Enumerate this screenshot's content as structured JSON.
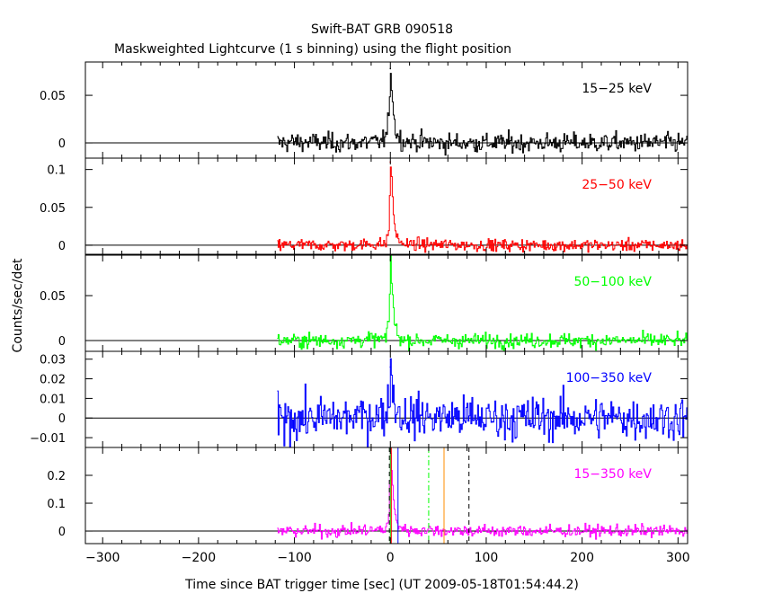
{
  "chart_data": {
    "type": "line",
    "title": "Swift-BAT GRB 090518",
    "subtitle": "Maskweighted Lightcurve (1 s binning) using the flight position",
    "xlabel": "Time since BAT trigger time [sec] (UT 2009-05-18T01:54:44.2)",
    "ylabel": "Counts/sec/det",
    "xlim": [
      -318,
      310
    ],
    "x_ticks": [
      -300,
      -200,
      -100,
      0,
      100,
      200,
      300
    ],
    "data_range": [
      -118,
      310
    ],
    "grid": false,
    "panels": [
      {
        "name": "15-25 keV",
        "label": "15−25 keV",
        "color": "#000000",
        "ylim": [
          -0.016,
          0.085
        ],
        "y_ticks": [
          0,
          0.05
        ],
        "y_tick_labels": [
          "0",
          "0.05"
        ],
        "noise_sd": 0.005,
        "peak": {
          "x": 0,
          "y": 0.078
        },
        "series": [
          {
            "x": -118,
            "y": 0.0
          },
          {
            "x": -100,
            "y": 0.001
          },
          {
            "x": -50,
            "y": 0.0
          },
          {
            "x": -10,
            "y": 0.001
          },
          {
            "x": -4,
            "y": 0.008
          },
          {
            "x": -2,
            "y": 0.03
          },
          {
            "x": 0,
            "y": 0.078
          },
          {
            "x": 2,
            "y": 0.045
          },
          {
            "x": 4,
            "y": 0.02
          },
          {
            "x": 7,
            "y": 0.008
          },
          {
            "x": 12,
            "y": 0.002
          },
          {
            "x": 50,
            "y": 0.0
          },
          {
            "x": 150,
            "y": 0.0
          },
          {
            "x": 250,
            "y": 0.0
          },
          {
            "x": 310,
            "y": 0.0
          }
        ]
      },
      {
        "name": "25-50 keV",
        "label": "25−50 keV",
        "color": "#ff0000",
        "ylim": [
          -0.012,
          0.115
        ],
        "y_ticks": [
          0,
          0.05,
          0.1
        ],
        "y_tick_labels": [
          "0",
          "0.05",
          "0.1"
        ],
        "noise_sd": 0.004,
        "peak": {
          "x": 0,
          "y": 0.11
        },
        "series": [
          {
            "x": -118,
            "y": 0.0
          },
          {
            "x": -50,
            "y": 0.0
          },
          {
            "x": -5,
            "y": 0.002
          },
          {
            "x": -2,
            "y": 0.02
          },
          {
            "x": 0,
            "y": 0.11
          },
          {
            "x": 2,
            "y": 0.06
          },
          {
            "x": 4,
            "y": 0.025
          },
          {
            "x": 8,
            "y": 0.006
          },
          {
            "x": 15,
            "y": 0.001
          },
          {
            "x": 100,
            "y": 0.0
          },
          {
            "x": 310,
            "y": 0.0
          }
        ]
      },
      {
        "name": "50-100 keV",
        "label": "50−100 keV",
        "color": "#00ff00",
        "ylim": [
          -0.012,
          0.095
        ],
        "y_ticks": [
          0,
          0.05
        ],
        "y_tick_labels": [
          "0",
          "0.05"
        ],
        "noise_sd": 0.004,
        "peak": {
          "x": 0,
          "y": 0.09
        },
        "series": [
          {
            "x": -118,
            "y": 0.0
          },
          {
            "x": -50,
            "y": 0.0
          },
          {
            "x": -5,
            "y": 0.002
          },
          {
            "x": -2,
            "y": 0.02
          },
          {
            "x": 0,
            "y": 0.09
          },
          {
            "x": 2,
            "y": 0.05
          },
          {
            "x": 4,
            "y": 0.02
          },
          {
            "x": 8,
            "y": 0.004
          },
          {
            "x": 15,
            "y": 0.0
          },
          {
            "x": 100,
            "y": 0.0
          },
          {
            "x": 310,
            "y": 0.0
          }
        ]
      },
      {
        "name": "100-350 keV",
        "label": "100−350 keV",
        "color": "#0000ff",
        "ylim": [
          -0.015,
          0.034
        ],
        "y_ticks": [
          -0.01,
          0,
          0.01,
          0.02,
          0.03
        ],
        "y_tick_labels": [
          "−0.01",
          "0",
          "0.01",
          "0.02",
          "0.03"
        ],
        "noise_sd": 0.0055,
        "peak": {
          "x": 0,
          "y": 0.026
        },
        "series": [
          {
            "x": -118,
            "y": 0.0
          },
          {
            "x": -50,
            "y": 0.0
          },
          {
            "x": -5,
            "y": 0.002
          },
          {
            "x": -2,
            "y": 0.01
          },
          {
            "x": 0,
            "y": 0.026
          },
          {
            "x": 2,
            "y": 0.015
          },
          {
            "x": 5,
            "y": 0.006
          },
          {
            "x": 10,
            "y": 0.001
          },
          {
            "x": 100,
            "y": 0.0
          },
          {
            "x": 310,
            "y": 0.0
          }
        ]
      },
      {
        "name": "15-350 keV",
        "label": "15−350 keV",
        "color": "#ff00ff",
        "ylim": [
          -0.045,
          0.3
        ],
        "y_ticks": [
          0,
          0.1,
          0.2
        ],
        "y_tick_labels": [
          "0",
          "0.1",
          "0.2"
        ],
        "noise_sd": 0.011,
        "peak": {
          "x": 0,
          "y": 0.285
        },
        "series": [
          {
            "x": -118,
            "y": 0.0
          },
          {
            "x": -50,
            "y": 0.0
          },
          {
            "x": -5,
            "y": 0.005
          },
          {
            "x": -2,
            "y": 0.06
          },
          {
            "x": 0,
            "y": 0.285
          },
          {
            "x": 2,
            "y": 0.15
          },
          {
            "x": 4,
            "y": 0.07
          },
          {
            "x": 8,
            "y": 0.02
          },
          {
            "x": 15,
            "y": 0.004
          },
          {
            "x": 100,
            "y": 0.0
          },
          {
            "x": 310,
            "y": 0.0
          }
        ],
        "markers": [
          {
            "x": -1,
            "color": "#000000",
            "style": "dashed"
          },
          {
            "x": 0,
            "color": "#00ff00",
            "style": "solid"
          },
          {
            "x": 1,
            "color": "#ff0000",
            "style": "solid"
          },
          {
            "x": 8,
            "color": "#0000ff",
            "style": "solid"
          },
          {
            "x": 40,
            "color": "#00ff00",
            "style": "dashdot"
          },
          {
            "x": 56,
            "color": "#ff8c00",
            "style": "solid"
          },
          {
            "x": 82,
            "color": "#000000",
            "style": "dashed"
          }
        ]
      }
    ]
  }
}
